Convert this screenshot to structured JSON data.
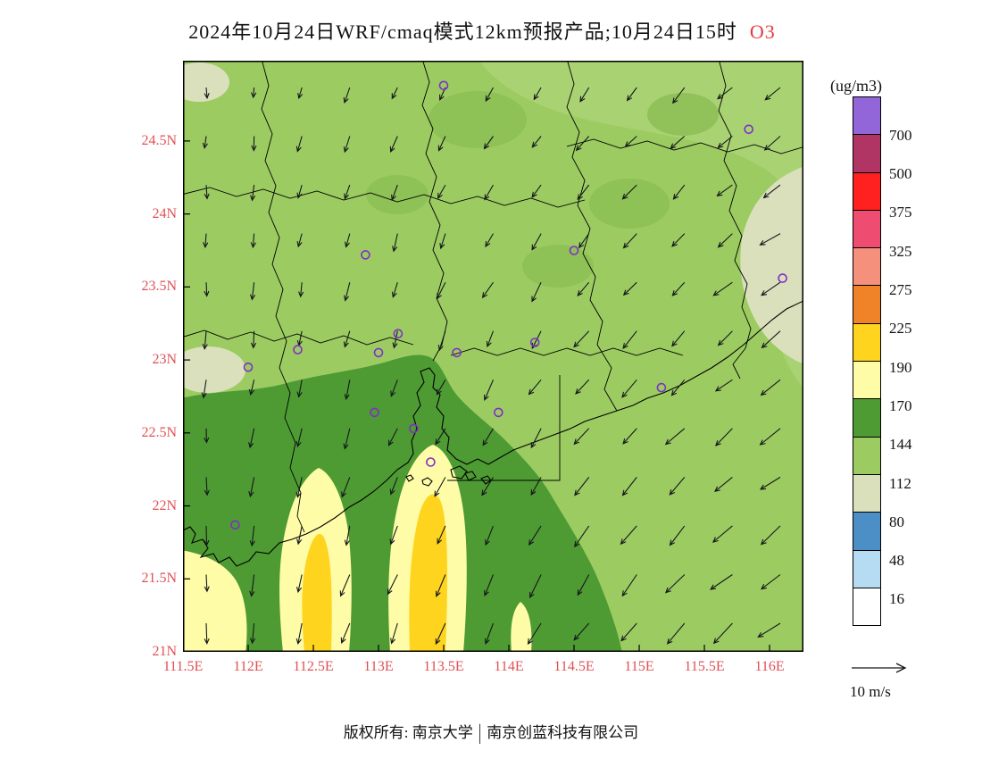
{
  "title": {
    "main": "2024年10月24日WRF/cmaq模式12km预报产品;10月24日15时",
    "species": "O3",
    "species_color": "#e8383f"
  },
  "axes": {
    "lat_labels": [
      "24.5N",
      "24N",
      "23.5N",
      "23N",
      "22.5N",
      "22N",
      "21.5N",
      "21N"
    ],
    "lat_values": [
      24.5,
      24,
      23.5,
      23,
      22.5,
      22,
      21.5,
      21
    ],
    "lon_labels": [
      "111.5E",
      "112E",
      "112.5E",
      "113E",
      "113.5E",
      "114E",
      "114.5E",
      "115E",
      "115.5E",
      "116E"
    ],
    "lon_values": [
      111.5,
      112,
      112.5,
      113,
      113.5,
      114,
      114.5,
      115,
      115.5,
      116
    ],
    "label_color": "#e05055"
  },
  "colorbar": {
    "unit": "(ug/m3)",
    "tick_labels": [
      "700",
      "500",
      "375",
      "325",
      "275",
      "225",
      "190",
      "170",
      "144",
      "112",
      "80",
      "48",
      "16"
    ],
    "colors_top_to_bottom": [
      "#9265d8",
      "#b03565",
      "#ff2020",
      "#ef4c72",
      "#f4907b",
      "#f08228",
      "#ffd41e",
      "#fffca8",
      "#4e9b33",
      "#9ccb62",
      "#dae0bc",
      "#4b8fc6",
      "#b5dcf3",
      "#ffffff"
    ]
  },
  "wind_legend": {
    "label": "10 m/s"
  },
  "footer": {
    "left": "版权所有: 南京大学",
    "divider": "|",
    "right": "南京创蓝科技有限公司"
  },
  "markers": {
    "station_color": "#7f2fc8"
  },
  "chart_data": {
    "type": "heatmap",
    "title": "2024年10月24日WRF/cmaq模式12km预报产品;10月24日15时 O3",
    "model": "WRF/CMAQ 12km",
    "species": "O3",
    "units": "ug/m3",
    "valid_time_label": "10月24日15时",
    "lon_range": [
      111.5,
      116.26
    ],
    "lat_range": [
      21.0,
      25.05
    ],
    "lon_ticks": [
      111.5,
      112,
      112.5,
      113,
      113.5,
      114,
      114.5,
      115,
      115.5,
      116
    ],
    "lat_ticks": [
      21,
      21.5,
      22,
      22.5,
      23,
      23.5,
      24,
      24.5
    ],
    "contour_levels": [
      16,
      48,
      80,
      112,
      144,
      170,
      190,
      225,
      275,
      325,
      375,
      500,
      700
    ],
    "palette_low_to_high": [
      "#ffffff",
      "#b5dcf3",
      "#4b8fc6",
      "#dae0bc",
      "#9ccb62",
      "#4e9b33",
      "#fffca8",
      "#ffd41e",
      "#f08228",
      "#f4907b",
      "#ef4c72",
      "#ff2020",
      "#b03565",
      "#9265d8"
    ],
    "field_regions": [
      {
        "area": "most of domain, central and north",
        "o3_range": [
          112,
          144
        ]
      },
      {
        "area": "southwest land and nearshore waters 112-114E, 21-22.7N",
        "o3_range": [
          144,
          170
        ]
      },
      {
        "area": "two south-north plumes near 112.5E and 113.4E south of 22.4N",
        "o3_range": [
          170,
          190
        ]
      },
      {
        "area": "plume cores near 112.5E and 113.5E, 21-22.2N",
        "o3_range": [
          190,
          225
        ]
      },
      {
        "area": "northeast corner and far-east patches",
        "o3_range": [
          80,
          112
        ]
      }
    ],
    "wind": {
      "reference": "10 m/s",
      "pattern": "northeasterly flow; arrows point S to SW, stronger toward east and south",
      "grid": {
        "cols": 13,
        "rows": 12
      }
    },
    "stations_lonlat": [
      [
        113.5,
        24.88
      ],
      [
        115.84,
        24.58
      ],
      [
        112.9,
        23.72
      ],
      [
        114.5,
        23.75
      ],
      [
        116.1,
        23.56
      ],
      [
        112.38,
        23.07
      ],
      [
        112.0,
        22.95
      ],
      [
        113.0,
        23.05
      ],
      [
        113.15,
        23.18
      ],
      [
        113.6,
        23.05
      ],
      [
        114.2,
        23.12
      ],
      [
        115.17,
        22.81
      ],
      [
        112.97,
        22.64
      ],
      [
        113.27,
        22.53
      ],
      [
        113.4,
        22.3
      ],
      [
        113.92,
        22.64
      ],
      [
        111.9,
        21.87
      ]
    ]
  }
}
